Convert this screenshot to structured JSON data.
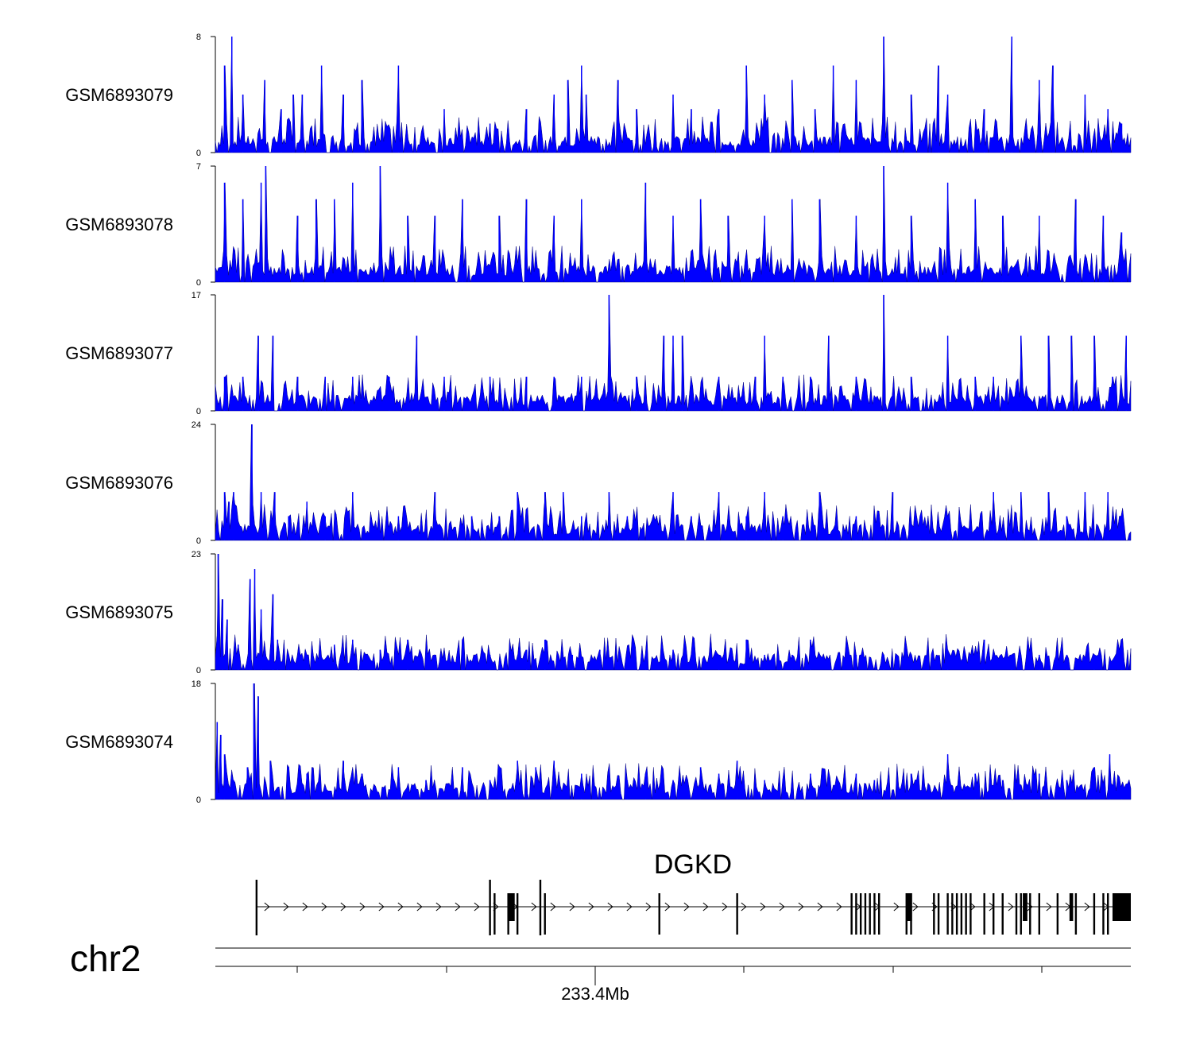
{
  "chart_data": {
    "type": "area",
    "series_color": "#0000FF",
    "tracks": [
      {
        "name": "GSM6893079",
        "ylim": [
          0,
          8
        ],
        "yticks": [
          "0",
          "8"
        ],
        "peaks": [
          [
            0.01,
            6
          ],
          [
            0.018,
            8
          ],
          [
            0.03,
            4
          ],
          [
            0.054,
            5
          ],
          [
            0.072,
            3
          ],
          [
            0.085,
            4
          ],
          [
            0.095,
            4
          ],
          [
            0.116,
            6
          ],
          [
            0.14,
            4
          ],
          [
            0.16,
            5
          ],
          [
            0.2,
            6
          ],
          [
            0.25,
            3
          ],
          [
            0.3,
            2
          ],
          [
            0.34,
            3
          ],
          [
            0.37,
            4
          ],
          [
            0.385,
            5
          ],
          [
            0.4,
            6
          ],
          [
            0.405,
            4
          ],
          [
            0.44,
            5
          ],
          [
            0.46,
            3
          ],
          [
            0.5,
            4
          ],
          [
            0.52,
            3
          ],
          [
            0.55,
            3
          ],
          [
            0.58,
            6
          ],
          [
            0.6,
            4
          ],
          [
            0.63,
            5
          ],
          [
            0.655,
            3
          ],
          [
            0.675,
            6
          ],
          [
            0.7,
            5
          ],
          [
            0.73,
            8
          ],
          [
            0.76,
            4
          ],
          [
            0.79,
            6
          ],
          [
            0.8,
            4
          ],
          [
            0.84,
            3
          ],
          [
            0.87,
            8
          ],
          [
            0.9,
            5
          ],
          [
            0.915,
            6
          ],
          [
            0.95,
            4
          ],
          [
            0.975,
            3
          ],
          [
            0.99,
            2
          ]
        ]
      },
      {
        "name": "GSM6893078",
        "ylim": [
          0,
          7
        ],
        "yticks": [
          "0",
          "7"
        ],
        "peaks": [
          [
            0.01,
            6
          ],
          [
            0.03,
            5
          ],
          [
            0.05,
            6
          ],
          [
            0.055,
            7
          ],
          [
            0.09,
            4
          ],
          [
            0.11,
            5
          ],
          [
            0.13,
            5
          ],
          [
            0.15,
            6
          ],
          [
            0.18,
            7
          ],
          [
            0.21,
            4
          ],
          [
            0.24,
            4
          ],
          [
            0.27,
            5
          ],
          [
            0.31,
            4
          ],
          [
            0.34,
            5
          ],
          [
            0.37,
            4
          ],
          [
            0.4,
            5
          ],
          [
            0.47,
            6
          ],
          [
            0.5,
            4
          ],
          [
            0.53,
            5
          ],
          [
            0.56,
            4
          ],
          [
            0.6,
            4
          ],
          [
            0.63,
            5
          ],
          [
            0.66,
            5
          ],
          [
            0.7,
            4
          ],
          [
            0.73,
            7
          ],
          [
            0.76,
            4
          ],
          [
            0.8,
            6
          ],
          [
            0.83,
            5
          ],
          [
            0.86,
            4
          ],
          [
            0.9,
            4
          ],
          [
            0.94,
            5
          ],
          [
            0.97,
            4
          ],
          [
            0.99,
            3
          ]
        ]
      },
      {
        "name": "GSM6893077",
        "ylim": [
          0,
          17
        ],
        "yticks": [
          "0",
          "17"
        ],
        "peaks": [
          [
            0.01,
            5
          ],
          [
            0.03,
            5
          ],
          [
            0.047,
            11
          ],
          [
            0.063,
            11
          ],
          [
            0.09,
            5
          ],
          [
            0.12,
            5
          ],
          [
            0.15,
            5
          ],
          [
            0.19,
            5
          ],
          [
            0.22,
            11
          ],
          [
            0.25,
            5
          ],
          [
            0.3,
            5
          ],
          [
            0.34,
            5
          ],
          [
            0.37,
            5
          ],
          [
            0.4,
            5
          ],
          [
            0.43,
            17
          ],
          [
            0.46,
            5
          ],
          [
            0.49,
            11
          ],
          [
            0.5,
            11
          ],
          [
            0.51,
            11
          ],
          [
            0.55,
            5
          ],
          [
            0.59,
            5
          ],
          [
            0.6,
            11
          ],
          [
            0.62,
            5
          ],
          [
            0.65,
            5
          ],
          [
            0.67,
            11
          ],
          [
            0.7,
            5
          ],
          [
            0.73,
            17
          ],
          [
            0.76,
            5
          ],
          [
            0.8,
            11
          ],
          [
            0.83,
            5
          ],
          [
            0.85,
            5
          ],
          [
            0.88,
            11
          ],
          [
            0.91,
            11
          ],
          [
            0.935,
            11
          ],
          [
            0.96,
            11
          ],
          [
            0.98,
            5
          ],
          [
            0.995,
            11
          ]
        ]
      },
      {
        "name": "GSM6893076",
        "ylim": [
          0,
          24
        ],
        "yticks": [
          "0",
          "24"
        ],
        "peaks": [
          [
            0.01,
            10
          ],
          [
            0.015,
            8
          ],
          [
            0.02,
            10
          ],
          [
            0.04,
            24
          ],
          [
            0.05,
            10
          ],
          [
            0.065,
            10
          ],
          [
            0.08,
            5
          ],
          [
            0.1,
            8
          ],
          [
            0.12,
            5
          ],
          [
            0.15,
            10
          ],
          [
            0.2,
            5
          ],
          [
            0.24,
            10
          ],
          [
            0.28,
            5
          ],
          [
            0.31,
            5
          ],
          [
            0.33,
            10
          ],
          [
            0.36,
            10
          ],
          [
            0.38,
            10
          ],
          [
            0.4,
            5
          ],
          [
            0.43,
            10
          ],
          [
            0.45,
            5
          ],
          [
            0.5,
            10
          ],
          [
            0.52,
            5
          ],
          [
            0.55,
            10
          ],
          [
            0.58,
            5
          ],
          [
            0.6,
            10
          ],
          [
            0.62,
            5
          ],
          [
            0.66,
            10
          ],
          [
            0.7,
            5
          ],
          [
            0.74,
            10
          ],
          [
            0.77,
            5
          ],
          [
            0.8,
            5
          ],
          [
            0.85,
            10
          ],
          [
            0.88,
            10
          ],
          [
            0.91,
            10
          ],
          [
            0.93,
            5
          ],
          [
            0.95,
            10
          ],
          [
            0.975,
            10
          ],
          [
            0.99,
            5
          ]
        ]
      },
      {
        "name": "GSM6893075",
        "ylim": [
          0,
          23
        ],
        "yticks": [
          "0",
          "23"
        ],
        "peaks": [
          [
            0.003,
            23
          ],
          [
            0.008,
            14
          ],
          [
            0.013,
            10
          ],
          [
            0.025,
            5
          ],
          [
            0.038,
            18
          ],
          [
            0.043,
            20
          ],
          [
            0.05,
            12
          ],
          [
            0.063,
            15
          ],
          [
            0.068,
            6
          ],
          [
            0.08,
            3
          ],
          [
            0.1,
            3
          ],
          [
            0.13,
            5
          ],
          [
            0.15,
            6
          ],
          [
            0.18,
            4
          ],
          [
            0.21,
            6
          ],
          [
            0.24,
            3
          ],
          [
            0.27,
            6
          ],
          [
            0.3,
            3
          ],
          [
            0.34,
            4
          ],
          [
            0.36,
            6
          ],
          [
            0.39,
            3
          ],
          [
            0.42,
            4
          ],
          [
            0.47,
            3
          ],
          [
            0.5,
            4
          ],
          [
            0.52,
            3
          ],
          [
            0.55,
            3
          ],
          [
            0.58,
            6
          ],
          [
            0.6,
            3
          ],
          [
            0.63,
            3
          ],
          [
            0.65,
            6
          ],
          [
            0.7,
            3
          ],
          [
            0.73,
            3
          ],
          [
            0.76,
            3
          ],
          [
            0.8,
            4
          ],
          [
            0.84,
            6
          ],
          [
            0.87,
            3
          ],
          [
            0.9,
            3
          ],
          [
            0.93,
            3
          ],
          [
            0.96,
            3
          ],
          [
            0.99,
            6
          ]
        ]
      },
      {
        "name": "GSM6893074",
        "ylim": [
          0,
          18
        ],
        "yticks": [
          "0",
          "18"
        ],
        "peaks": [
          [
            0.002,
            12
          ],
          [
            0.006,
            10
          ],
          [
            0.01,
            7
          ],
          [
            0.02,
            3
          ],
          [
            0.035,
            5
          ],
          [
            0.042,
            18
          ],
          [
            0.047,
            16
          ],
          [
            0.06,
            6
          ],
          [
            0.08,
            5
          ],
          [
            0.1,
            4
          ],
          [
            0.14,
            6
          ],
          [
            0.16,
            4
          ],
          [
            0.2,
            5
          ],
          [
            0.23,
            3
          ],
          [
            0.27,
            5
          ],
          [
            0.3,
            3
          ],
          [
            0.31,
            5
          ],
          [
            0.33,
            6
          ],
          [
            0.35,
            5
          ],
          [
            0.37,
            6
          ],
          [
            0.4,
            4
          ],
          [
            0.45,
            3
          ],
          [
            0.47,
            4
          ],
          [
            0.5,
            3
          ],
          [
            0.53,
            5
          ],
          [
            0.55,
            4
          ],
          [
            0.57,
            6
          ],
          [
            0.6,
            3
          ],
          [
            0.62,
            3
          ],
          [
            0.65,
            4
          ],
          [
            0.68,
            3
          ],
          [
            0.7,
            4
          ],
          [
            0.72,
            3
          ],
          [
            0.76,
            4
          ],
          [
            0.8,
            7
          ],
          [
            0.83,
            4
          ],
          [
            0.86,
            3
          ],
          [
            0.9,
            4
          ],
          [
            0.93,
            3
          ],
          [
            0.96,
            5
          ],
          [
            0.977,
            7
          ],
          [
            0.99,
            2
          ]
        ]
      }
    ],
    "annotation": {
      "gene": "DGKD",
      "exons_major": [
        0.045,
        0.3,
        0.305,
        0.32,
        0.33,
        0.355,
        0.36,
        0.485,
        0.57,
        0.695,
        0.7,
        0.705,
        0.71,
        0.715,
        0.72,
        0.725,
        0.755,
        0.76,
        0.785,
        0.79,
        0.8,
        0.805,
        0.81,
        0.815,
        0.82,
        0.825,
        0.84,
        0.85,
        0.86,
        0.875,
        0.88,
        0.89,
        0.9,
        0.92,
        0.94,
        0.96,
        0.97,
        0.975
      ],
      "exons_thick": [
        [
          0.32,
          0.327
        ],
        [
          0.755,
          0.761
        ],
        [
          0.882,
          0.887
        ],
        [
          0.933,
          0.937
        ],
        [
          0.98,
          1.0
        ]
      ],
      "gene_range": [
        0.045,
        1.0
      ]
    },
    "chromosome": "chr2",
    "axis_label": "233.4Mb",
    "axis_tick_count": 6
  }
}
